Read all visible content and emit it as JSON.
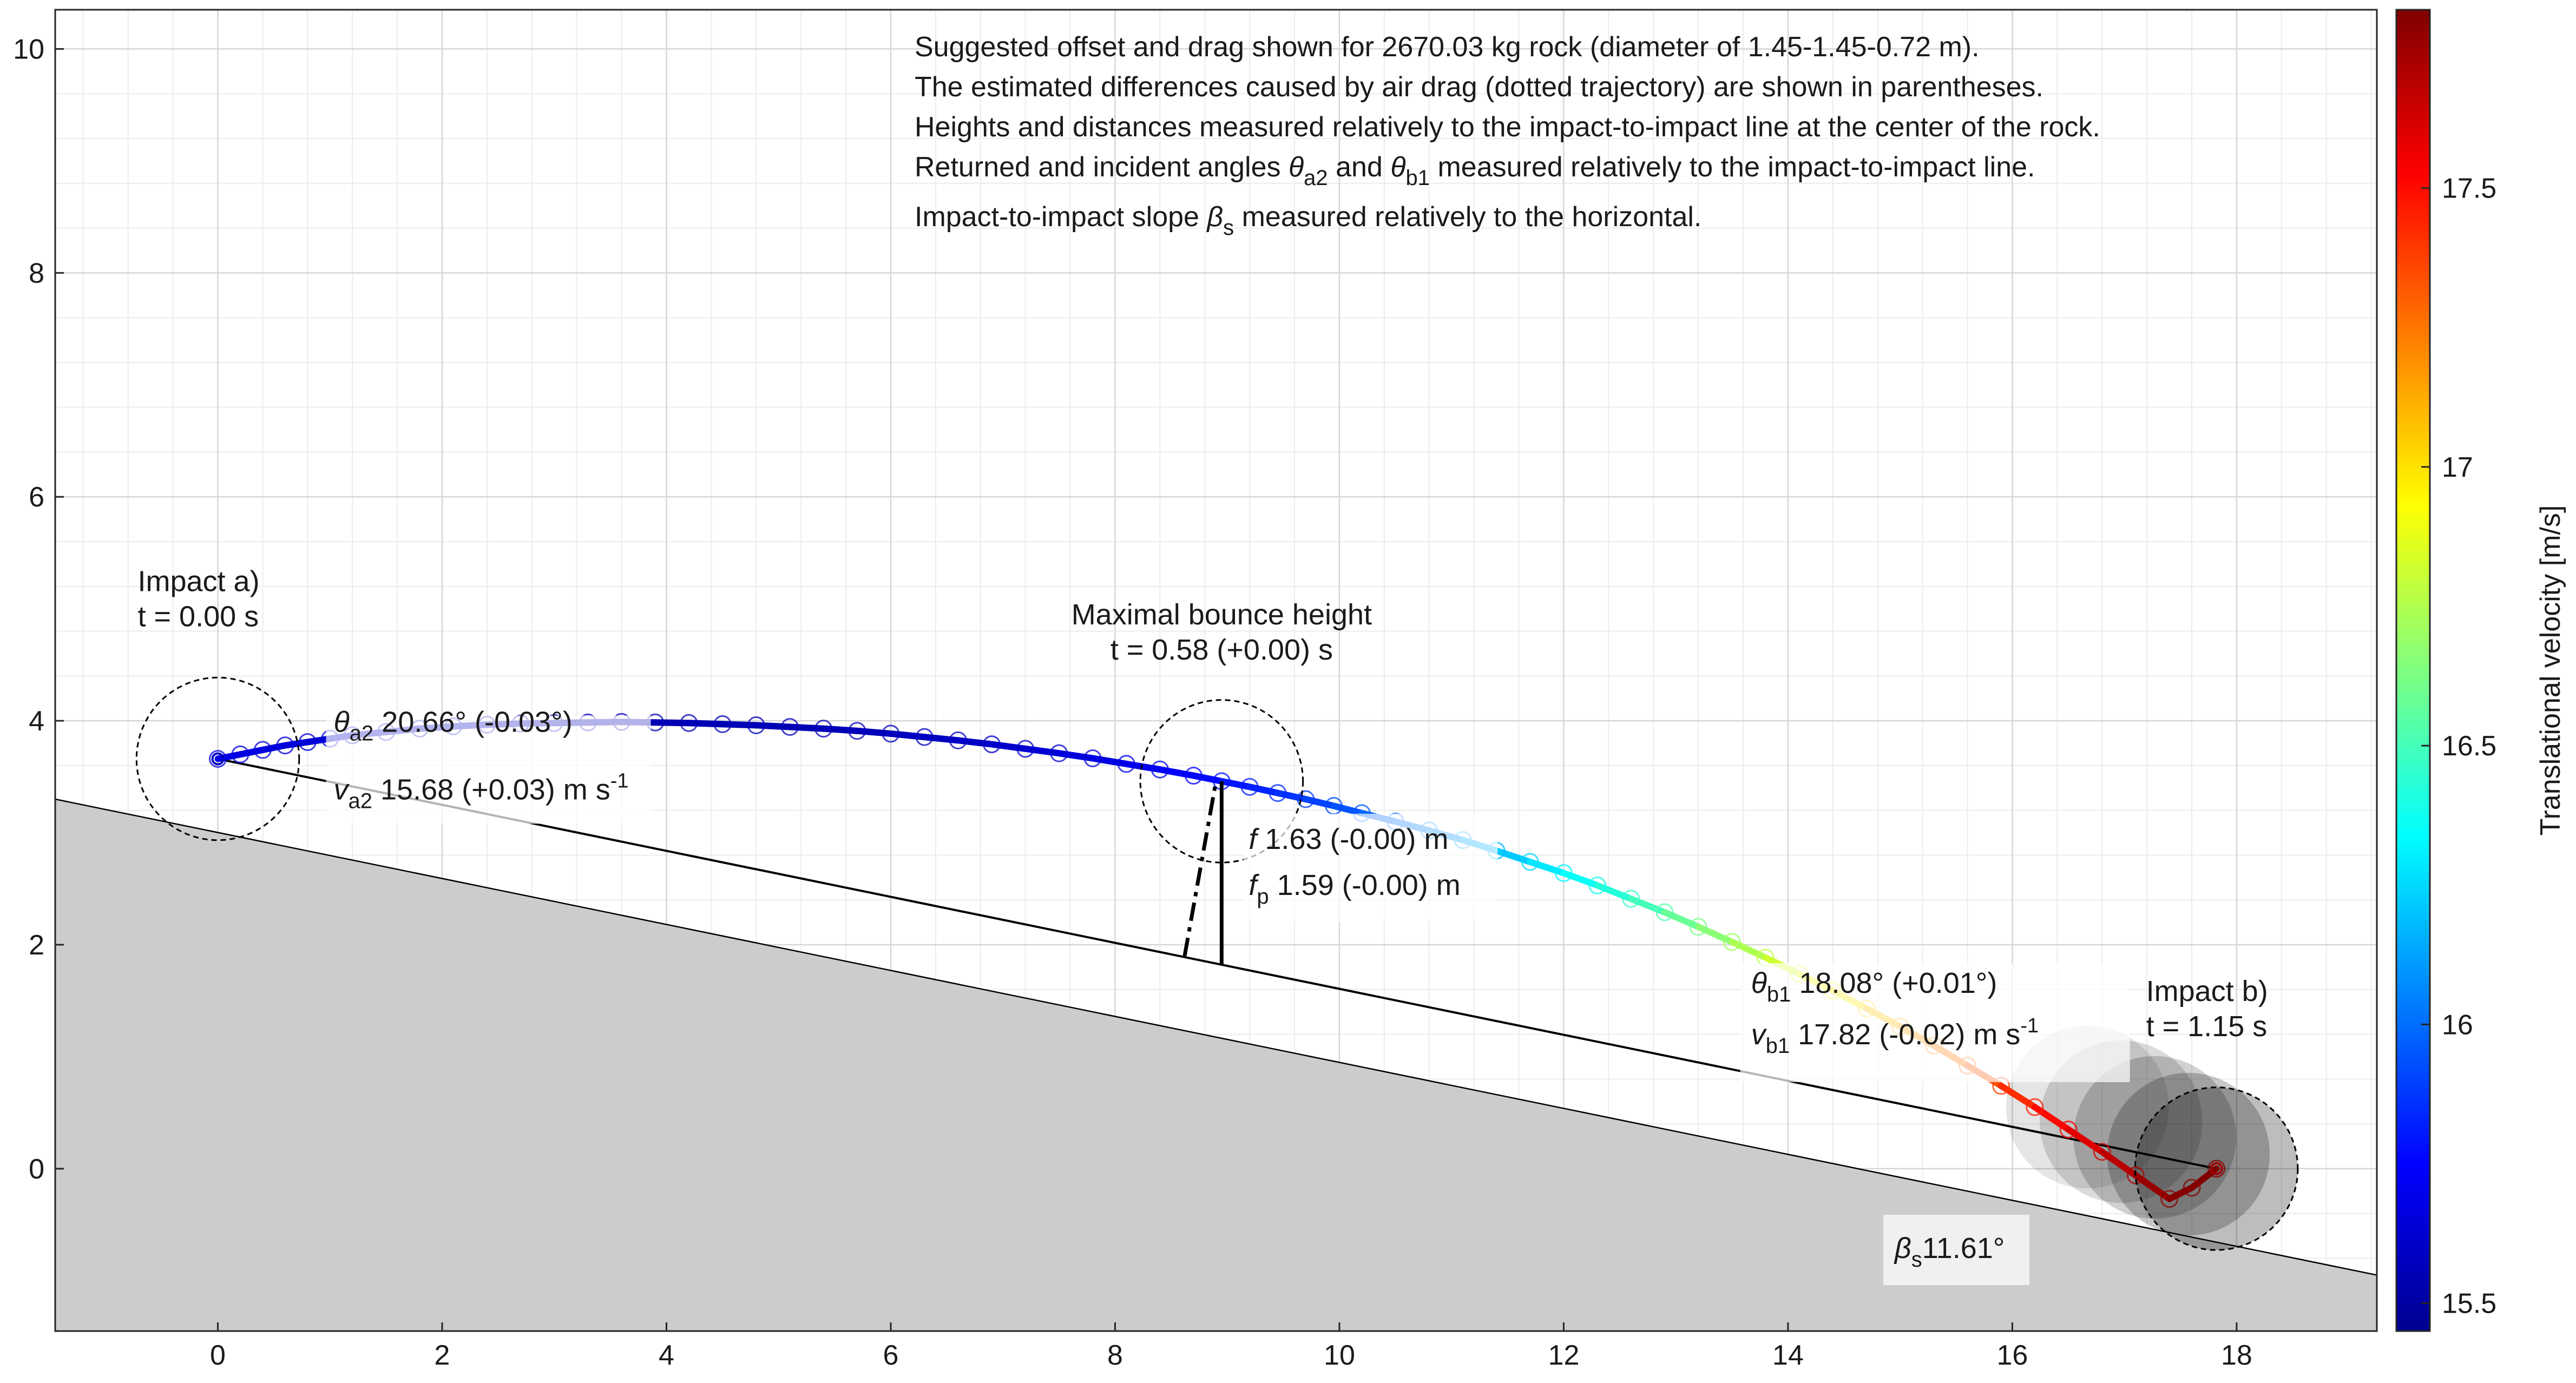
{
  "chart_data": {
    "type": "line",
    "xlim": [
      -1.45,
      19.25
    ],
    "ylim": [
      -1.45,
      10.35
    ],
    "x_ticks": [
      0,
      2,
      4,
      6,
      8,
      10,
      12,
      14,
      16,
      18
    ],
    "y_ticks": [
      0,
      2,
      4,
      6,
      8,
      10
    ],
    "x_tick_labels": [
      "0",
      "2",
      "4",
      "6",
      "8",
      "10",
      "12",
      "14",
      "16",
      "18"
    ],
    "y_tick_labels": [
      "0",
      "2",
      "4",
      "6",
      "8",
      "10"
    ],
    "grid": true,
    "notes": [
      "Suggested offset and drag shown for 2670.03 kg rock (diameter of 1.45-1.45-0.72 m).",
      "The estimated differences caused by air drag (dotted trajectory) are shown in parentheses.",
      "Heights and distances measured relatively to the impact-to-impact line at the center of the rock.",
      {
        "pre": "Returned and incident angles ",
        "sym1": "θ",
        "sub1": "a2",
        "mid": " and ",
        "sym2": "θ",
        "sub2": "b1",
        "post": " measured relatively to the impact-to-impact line."
      },
      {
        "pre": "Impact-to-impact slope ",
        "sym": "β",
        "sub": "s",
        "post": " measured relatively to the horizontal."
      }
    ],
    "ground": {
      "x": [
        -1.45,
        19.25
      ],
      "y": [
        3.3,
        -0.95
      ],
      "color": "#cccccc"
    },
    "impact_line": {
      "x": [
        0,
        17.82
      ],
      "y": [
        3.66,
        0
      ]
    },
    "trajectory": {
      "x": [
        0,
        0.2,
        0.4,
        0.6,
        0.8,
        1.0,
        1.2,
        1.5,
        1.8,
        2.1,
        2.4,
        2.7,
        3.0,
        3.3,
        3.6,
        3.9,
        4.2,
        4.5,
        4.8,
        5.1,
        5.4,
        5.7,
        6.0,
        6.3,
        6.6,
        6.9,
        7.2,
        7.5,
        7.8,
        8.1,
        8.4,
        8.7,
        8.95,
        9.2,
        9.45,
        9.7,
        9.95,
        10.2,
        10.5,
        10.8,
        11.1,
        11.4,
        11.7,
        12.0,
        12.3,
        12.6,
        12.9,
        13.2,
        13.5,
        13.8,
        14.1,
        14.4,
        14.7,
        15.0,
        15.3,
        15.6,
        15.9,
        16.2,
        16.5,
        16.8,
        17.1,
        17.4,
        17.6,
        17.82
      ],
      "y": [
        3.66,
        3.7,
        3.74,
        3.78,
        3.81,
        3.84,
        3.87,
        3.9,
        3.93,
        3.95,
        3.965,
        3.975,
        3.98,
        3.985,
        3.99,
        3.985,
        3.98,
        3.97,
        3.96,
        3.945,
        3.93,
        3.91,
        3.885,
        3.855,
        3.825,
        3.79,
        3.75,
        3.71,
        3.665,
        3.615,
        3.565,
        3.51,
        3.46,
        3.41,
        3.355,
        3.3,
        3.24,
        3.175,
        3.1,
        3.02,
        2.935,
        2.84,
        2.74,
        2.64,
        2.53,
        2.41,
        2.29,
        2.16,
        2.025,
        1.885,
        1.74,
        1.59,
        1.43,
        1.27,
        1.1,
        0.92,
        0.74,
        0.55,
        0.35,
        0.15,
        -0.06,
        -0.27,
        -0.17,
        0
      ],
      "velocity": [
        15.68,
        15.67,
        15.66,
        15.65,
        15.64,
        15.63,
        15.62,
        15.61,
        15.6,
        15.59,
        15.58,
        15.57,
        15.56,
        15.56,
        15.55,
        15.55,
        15.55,
        15.55,
        15.55,
        15.55,
        15.56,
        15.56,
        15.57,
        15.58,
        15.59,
        15.6,
        15.62,
        15.64,
        15.66,
        15.69,
        15.72,
        15.75,
        15.78,
        15.81,
        15.84,
        15.88,
        15.92,
        15.96,
        16.01,
        16.06,
        16.12,
        16.18,
        16.25,
        16.32,
        16.39,
        16.46,
        16.54,
        16.62,
        16.7,
        16.78,
        16.86,
        16.95,
        17.03,
        17.12,
        17.2,
        17.29,
        17.38,
        17.46,
        17.55,
        17.64,
        17.73,
        17.8,
        17.81,
        17.82
      ]
    },
    "impact_a": {
      "x": 0,
      "y": 3.66,
      "label": "Impact a)",
      "time": "t = 0.00 s",
      "theta_sym": "θ",
      "theta_sub": "a2",
      "theta_value": "20.66° (-0.03°)",
      "v_sym": "v",
      "v_sub": "a2",
      "v_value": "15.68 (+0.03) m s",
      "v_exp": "-1"
    },
    "max_bounce": {
      "x": 8.95,
      "y": 3.46,
      "foot_x": 8.95,
      "foot_y": 1.82,
      "dash_foot_x": 8.62,
      "dash_foot_y": 1.9,
      "label": "Maximal bounce height",
      "time": "t = 0.58 (+0.00) s",
      "f_sym": "f",
      "f_value": "1.63 (-0.00) m",
      "fp_sym": "f",
      "fp_sub": "p",
      "fp_value": "1.59 (-0.00) m"
    },
    "impact_b": {
      "x": 17.82,
      "y": 0,
      "label": "Impact b)",
      "time": "t = 1.15 s",
      "theta_sym": "θ",
      "theta_sub": "b1",
      "theta_value": "18.08° (+0.01°)",
      "v_sym": "v",
      "v_sub": "b1",
      "v_value": "17.82 (-0.02) m s",
      "v_exp": "-1"
    },
    "slope": {
      "sym": "β",
      "sub": "s",
      "value": "11.61°"
    },
    "rock_diameter": 1.45,
    "colorbar": {
      "label": "Translational velocity [m/s]",
      "min": 15.45,
      "max": 17.82,
      "ticks": [
        15.5,
        16,
        16.5,
        17,
        17.5
      ],
      "tick_labels": [
        "15.5",
        "16",
        "16.5",
        "17",
        "17.5"
      ],
      "colormap": [
        "#00008f",
        "#0000ff",
        "#00ffff",
        "#ffff00",
        "#ff0000",
        "#800000"
      ]
    }
  }
}
